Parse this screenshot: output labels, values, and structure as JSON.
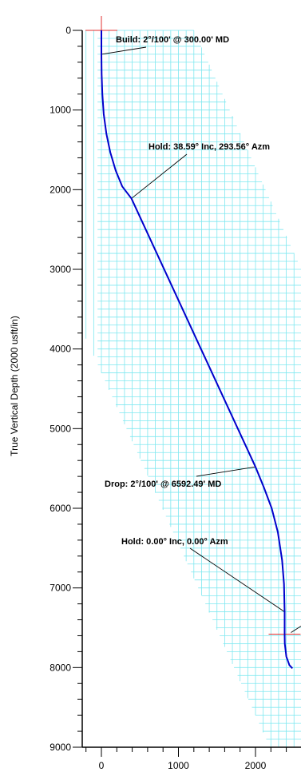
{
  "chart_data": {
    "type": "line",
    "title": "",
    "xlabel": "",
    "ylabel": "True Vertical Depth (2000 usft/in)",
    "xlim": [
      -230,
      2600
    ],
    "ylim": [
      0,
      9000
    ],
    "y_inverted": true,
    "grid": true,
    "x_ticks": [
      0,
      1000,
      2000
    ],
    "y_ticks": [
      0,
      1000,
      2000,
      3000,
      4000,
      5000,
      6000,
      7000,
      8000,
      9000
    ],
    "colors": {
      "well_path": "#0000cc",
      "grid": "#7fe8f0",
      "marker": "#e03030",
      "axis": "#000000"
    },
    "series": [
      {
        "values": [
          {
            "x": 0,
            "y": 0
          },
          {
            "x": 0,
            "y": 300
          },
          {
            "x": 3,
            "y": 550
          },
          {
            "x": 12,
            "y": 800
          },
          {
            "x": 30,
            "y": 1050
          },
          {
            "x": 65,
            "y": 1300
          },
          {
            "x": 115,
            "y": 1530
          },
          {
            "x": 185,
            "y": 1760
          },
          {
            "x": 270,
            "y": 1960
          },
          {
            "x": 390,
            "y": 2110
          },
          {
            "x": 2000,
            "y": 5480
          },
          {
            "x": 2110,
            "y": 5740
          },
          {
            "x": 2210,
            "y": 6000
          },
          {
            "x": 2290,
            "y": 6300
          },
          {
            "x": 2345,
            "y": 6650
          },
          {
            "x": 2370,
            "y": 6950
          },
          {
            "x": 2378,
            "y": 7300
          },
          {
            "x": 2378,
            "y": 7580
          },
          {
            "x": 2380,
            "y": 7700
          },
          {
            "x": 2400,
            "y": 7860
          },
          {
            "x": 2440,
            "y": 7970
          },
          {
            "x": 2480,
            "y": 8010
          }
        ]
      }
    ],
    "annotations": [
      {
        "text": "Build: 2°/100' @ 300.00' MD",
        "x": 0,
        "y": 300
      },
      {
        "text": "Hold: 38.59° Inc, 293.56° Azm",
        "x": 390,
        "y": 2110
      },
      {
        "text": "Drop: 2°/100' @ 6592.49' MD",
        "x": 2000,
        "y": 5480
      },
      {
        "text": "Hold: 0.00° Inc, 0.00° Azm",
        "x": 2378,
        "y": 7300
      }
    ],
    "markers": [
      {
        "x": 0,
        "y": 0
      },
      {
        "x": 2378,
        "y": 7580
      }
    ]
  }
}
